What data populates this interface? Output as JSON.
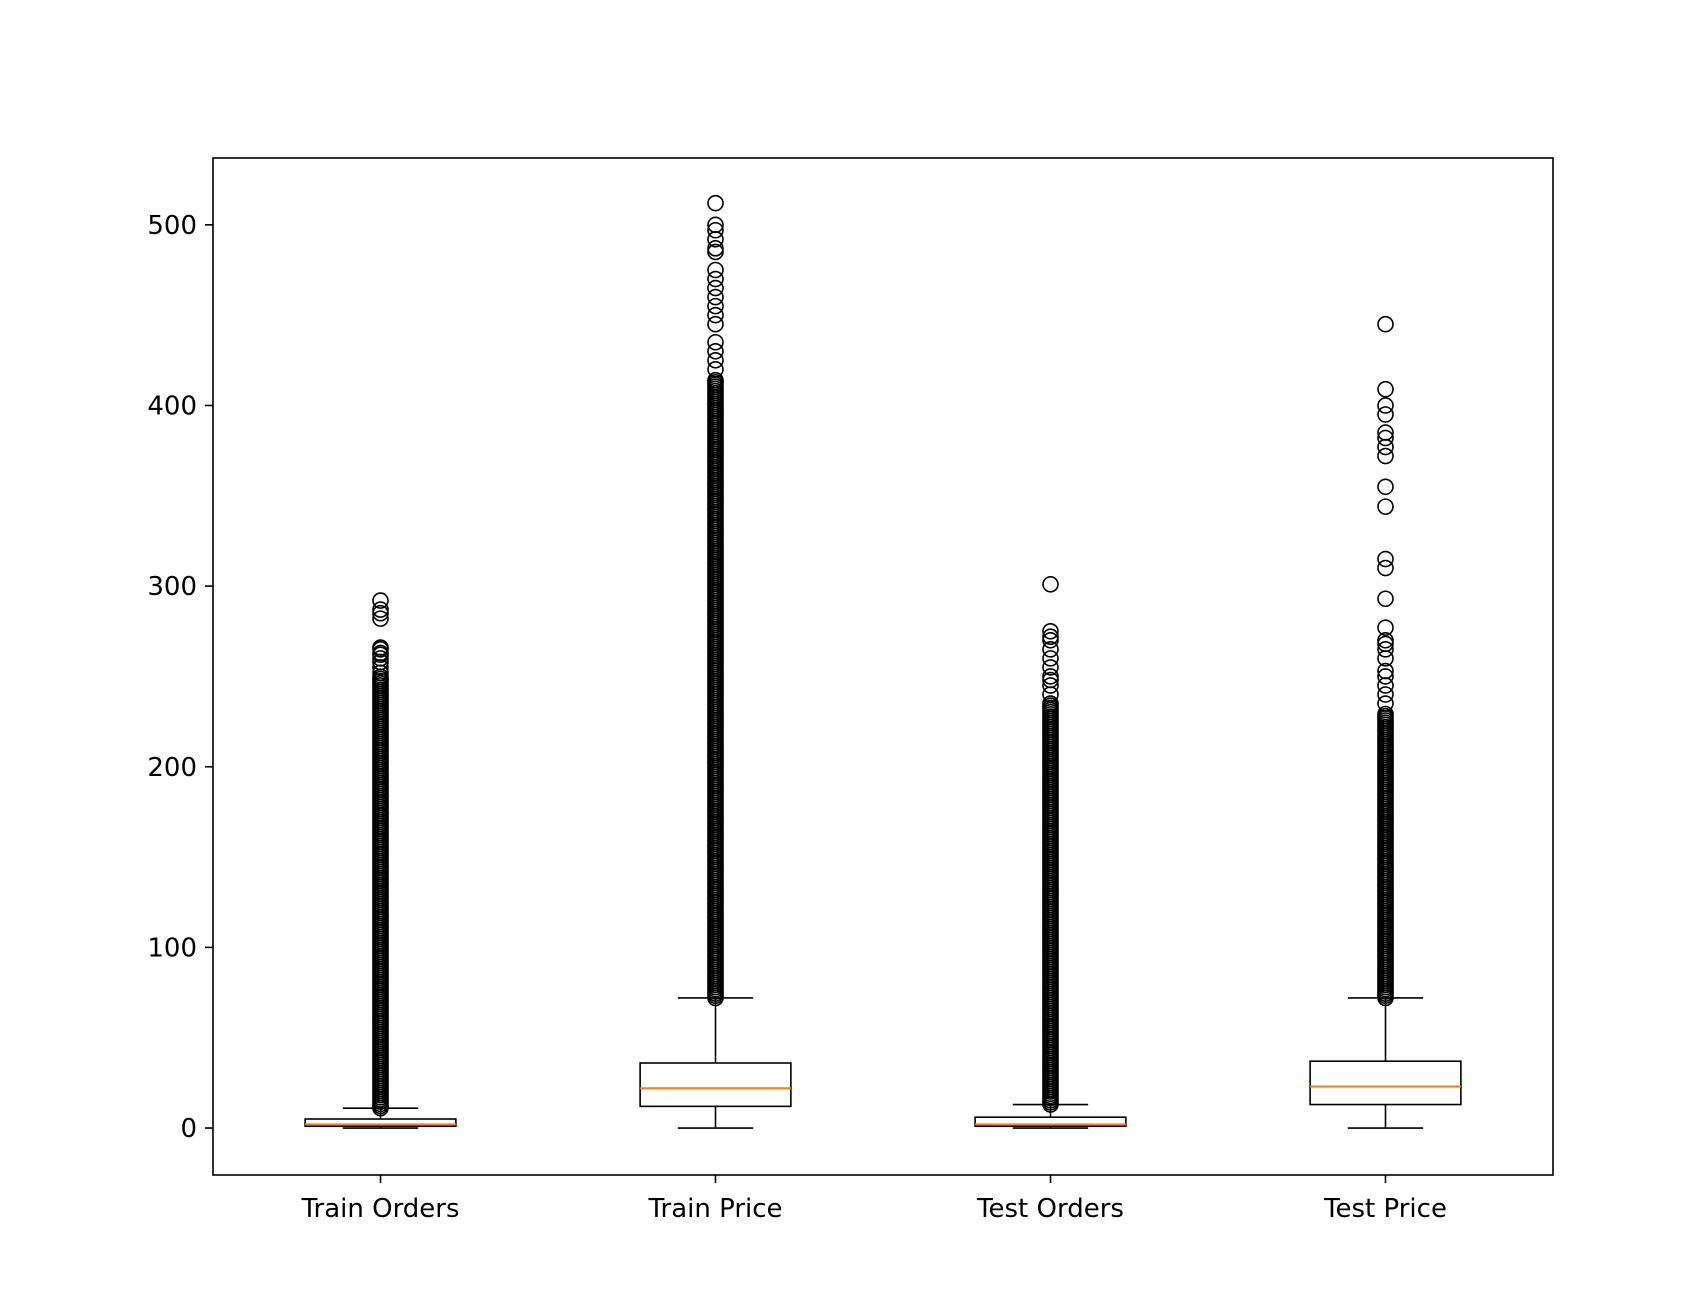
{
  "chart_data": {
    "type": "boxplot",
    "title": "",
    "xlabel": "",
    "ylabel": "",
    "ylim": [
      -26,
      537
    ],
    "yticks": [
      0,
      100,
      200,
      300,
      400,
      500
    ],
    "grid": false,
    "categories": [
      "Train Orders",
      "Train Price",
      "Test Orders",
      "Test Price"
    ],
    "colors": {
      "box": "#000000",
      "median": "#ff7f0e",
      "flier": "#000000"
    },
    "boxes": [
      {
        "label": "Train Orders",
        "whislo": 0,
        "q1": 1,
        "med": 2,
        "q3": 5,
        "whishi": 11,
        "fliers_dense_range": [
          11,
          250
        ],
        "fliers": [
          252,
          255,
          258,
          260,
          262,
          263,
          265,
          266,
          282,
          285,
          287,
          292
        ]
      },
      {
        "label": "Train Price",
        "whislo": 0,
        "q1": 12,
        "med": 22,
        "q3": 36,
        "whishi": 72,
        "fliers_dense_range": [
          72,
          415
        ],
        "fliers": [
          420,
          425,
          430,
          435,
          445,
          450,
          455,
          460,
          465,
          470,
          475,
          485,
          487,
          492,
          497,
          500,
          512
        ]
      },
      {
        "label": "Test Orders",
        "whislo": 0,
        "q1": 1,
        "med": 2,
        "q3": 6,
        "whishi": 13,
        "fliers_dense_range": [
          13,
          235
        ],
        "fliers": [
          240,
          245,
          248,
          250,
          255,
          260,
          265,
          270,
          272,
          275,
          301
        ]
      },
      {
        "label": "Test Price",
        "whislo": 0,
        "q1": 13,
        "med": 23,
        "q3": 37,
        "whishi": 72,
        "fliers_dense_range": [
          72,
          230
        ],
        "fliers": [
          235,
          240,
          245,
          250,
          253,
          260,
          265,
          268,
          270,
          277,
          293,
          310,
          315,
          344,
          355,
          372,
          377,
          382,
          385,
          395,
          400,
          409,
          445
        ]
      }
    ]
  }
}
